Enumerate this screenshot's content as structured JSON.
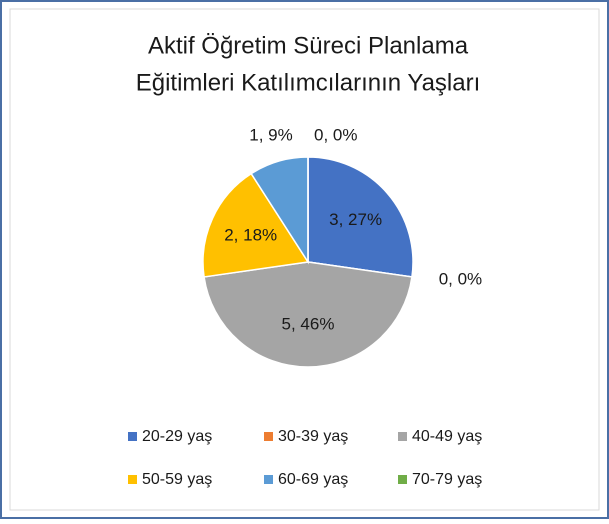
{
  "chart_data": {
    "type": "pie",
    "title": [
      "Aktif Öğretim Süreci Planlama",
      "Eğitimleri Katılımcılarının Yaşları"
    ],
    "categories": [
      "20-29 yaş",
      "30-39 yaş",
      "40-49 yaş",
      "50-59 yaş",
      "60-69 yaş",
      "70-79 yaş"
    ],
    "values": [
      3,
      0,
      5,
      2,
      1,
      0
    ],
    "value_labels": [
      "3, 27%",
      "0, 0%",
      "5, 46%",
      "2, 18%",
      "1, 9%",
      "0, 0%"
    ],
    "colors": [
      "#4472c4",
      "#ed7d31",
      "#a5a5a5",
      "#ffc000",
      "#5b9bd5",
      "#70ad47"
    ],
    "legend": "bottom"
  }
}
